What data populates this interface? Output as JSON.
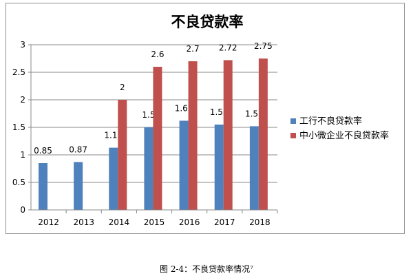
{
  "chart_data": {
    "type": "bar",
    "title": "不良贷款率",
    "categories": [
      "2012",
      "2013",
      "2014",
      "2015",
      "2016",
      "2017",
      "2018"
    ],
    "series": [
      {
        "name": "工行不良贷款率",
        "color": "#4f81bd",
        "values": [
          0.85,
          0.87,
          1.13,
          1.5,
          1.62,
          1.55,
          1.52
        ],
        "labels": [
          "0.85",
          "0.87",
          "1.13",
          "1.5",
          "1.62",
          "1.55",
          "1.52"
        ]
      },
      {
        "name": "中小微企业不良贷款率",
        "color": "#c0504d",
        "values": [
          null,
          null,
          2,
          2.6,
          2.7,
          2.72,
          2.75
        ],
        "labels": [
          "",
          "",
          "2",
          "2.6",
          "2.7",
          "2.72",
          "2.75"
        ]
      }
    ],
    "ylim": [
      0,
      3
    ],
    "yticks": [
      "0",
      "0.5",
      "1",
      "1.5",
      "2",
      "2.5",
      "3"
    ],
    "xlabel": "",
    "ylabel": "",
    "legend": "right",
    "grid": true
  },
  "caption": "图 2-4：不良贷款率情况⁷"
}
